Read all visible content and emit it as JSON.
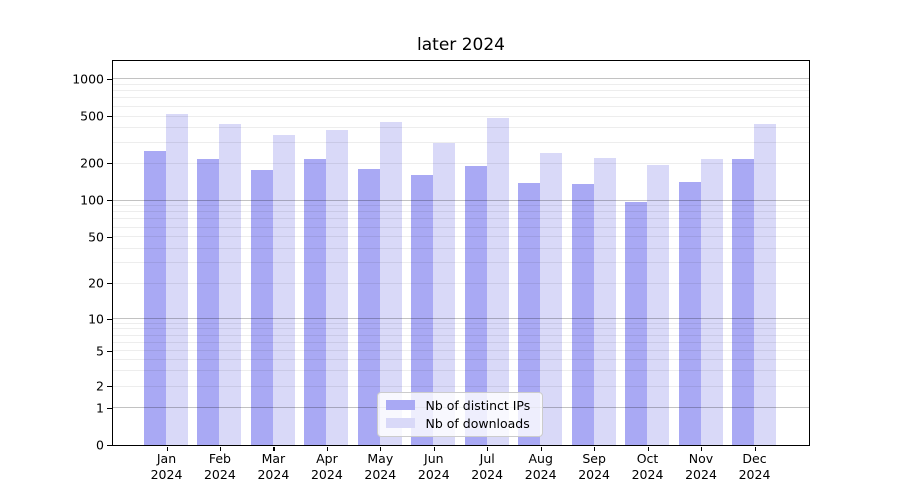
{
  "figure": {
    "title": "later 2024"
  },
  "chart_data": {
    "type": "bar",
    "title": "later 2024",
    "categories": [
      "Jan",
      "Feb",
      "Mar",
      "Apr",
      "May",
      "Jun",
      "Jul",
      "Aug",
      "Sep",
      "Oct",
      "Nov",
      "Dec"
    ],
    "category_year": "2024",
    "series": [
      {
        "name": "Nb of distinct IPs",
        "color": "#a9a9f4",
        "values": [
          250,
          214,
          173,
          216,
          178,
          157,
          186,
          137,
          135,
          96,
          138,
          216
        ]
      },
      {
        "name": "Nb of downloads",
        "color": "#d9d9f8",
        "values": [
          510,
          420,
          340,
          375,
          445,
          295,
          475,
          240,
          217,
          191,
          215,
          425
        ]
      }
    ],
    "xlabel": "",
    "ylabel": "",
    "y_ticks": [
      0,
      1,
      2,
      5,
      10,
      20,
      50,
      100,
      200,
      500,
      1000
    ],
    "scale": "symlog",
    "grid": true,
    "legend_position": "bottom-center",
    "colors": {
      "axis": "#000000",
      "major_grid": "#c2c2c2",
      "minor_grid": "#ededed",
      "background": "#ffffff"
    }
  }
}
